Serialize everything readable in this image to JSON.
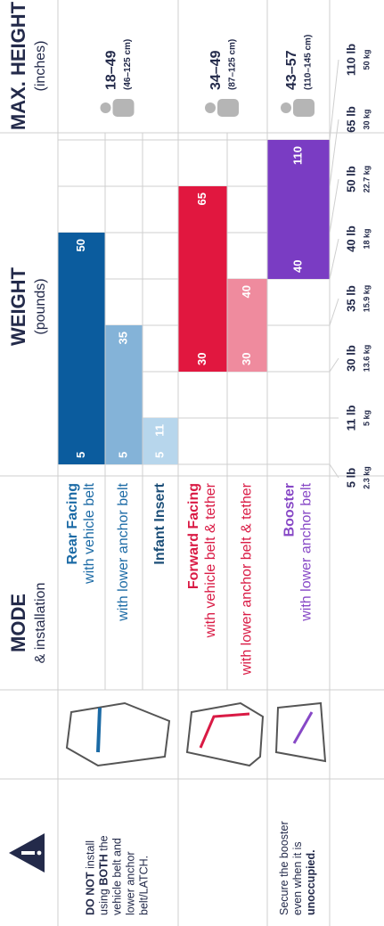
{
  "header": {
    "mode_title": "MODE",
    "mode_sub": "& installation",
    "weight_title": "WEIGHT",
    "weight_sub": "(pounds)",
    "height_title": "MAX. HEIGHT",
    "height_sub": "(inches)"
  },
  "warnings": [
    {
      "lines": [
        [
          {
            "t": "DO NOT",
            "b": true
          },
          {
            "t": " install",
            "b": false
          }
        ],
        [
          {
            "t": "using ",
            "b": false
          },
          {
            "t": "BOTH",
            "b": true
          },
          {
            "t": " the",
            "b": false
          }
        ],
        [
          {
            "t": "vehicle belt and",
            "b": false
          }
        ],
        [
          {
            "t": "lower anchor",
            "b": false
          }
        ],
        [
          {
            "t": "belt/LATCH.",
            "b": false
          }
        ]
      ]
    },
    {
      "lines": [
        [
          {
            "t": "Secure the booster",
            "b": false
          }
        ],
        [
          {
            "t": "even when it is",
            "b": false
          }
        ],
        [
          {
            "t": "unoccupied.",
            "b": true
          }
        ]
      ]
    }
  ],
  "rows": [
    {
      "title": "Rear Facing",
      "sub": "with vehicle belt",
      "text_color": "#1b6aa5",
      "color": "#0b5c9e",
      "bar": {
        "from": 5,
        "to": 50
      }
    },
    {
      "sub": "with lower anchor belt",
      "text_color": "#1b6aa5",
      "color": "#84b3d8",
      "bar": {
        "from": 5,
        "to": 35
      }
    },
    {
      "title": "Infant Insert",
      "text_color": "#1d4f78",
      "color": "#b7d6ec",
      "bar": {
        "from": 5,
        "to": 11
      }
    },
    {
      "title": "Forward Facing",
      "sub": "with vehicle belt & tether",
      "text_color": "#d91a44",
      "color": "#e1173f",
      "bar": {
        "from": 30,
        "to": 65
      }
    },
    {
      "sub": "with lower anchor belt & tether",
      "text_color": "#d91a44",
      "color": "#ef8b9e",
      "bar": {
        "from": 30,
        "to": 40
      }
    },
    {
      "title": "Booster",
      "sub": "with lower anchor belt",
      "text_color": "#8748c6",
      "color": "#7a3cc3",
      "bar": {
        "from": 40,
        "to": 110
      }
    }
  ],
  "weight_scale": [
    {
      "value": 5,
      "label": "5 lb",
      "kg": "2.3 kg"
    },
    {
      "value": 11,
      "label": "11 lb",
      "kg": "5 kg"
    },
    {
      "value": 30,
      "label": "30 lb",
      "kg": "13.6 kg"
    },
    {
      "value": 35,
      "label": "35 lb",
      "kg": "15.9 kg"
    },
    {
      "value": 40,
      "label": "40 lb",
      "kg": "18 kg"
    },
    {
      "value": 50,
      "label": "50 lb",
      "kg": "22.7 kg"
    },
    {
      "value": 65,
      "label": "65 lb",
      "kg": "30 kg"
    },
    {
      "value": 110,
      "label": "110 lb",
      "kg": "50 kg"
    }
  ],
  "heights": [
    {
      "inches": "18–49",
      "cm": "(46–125 cm)"
    },
    {
      "inches": "34–49",
      "cm": "(87–125 cm)"
    },
    {
      "inches": "43–57",
      "cm": "(110–145 cm)"
    }
  ]
}
